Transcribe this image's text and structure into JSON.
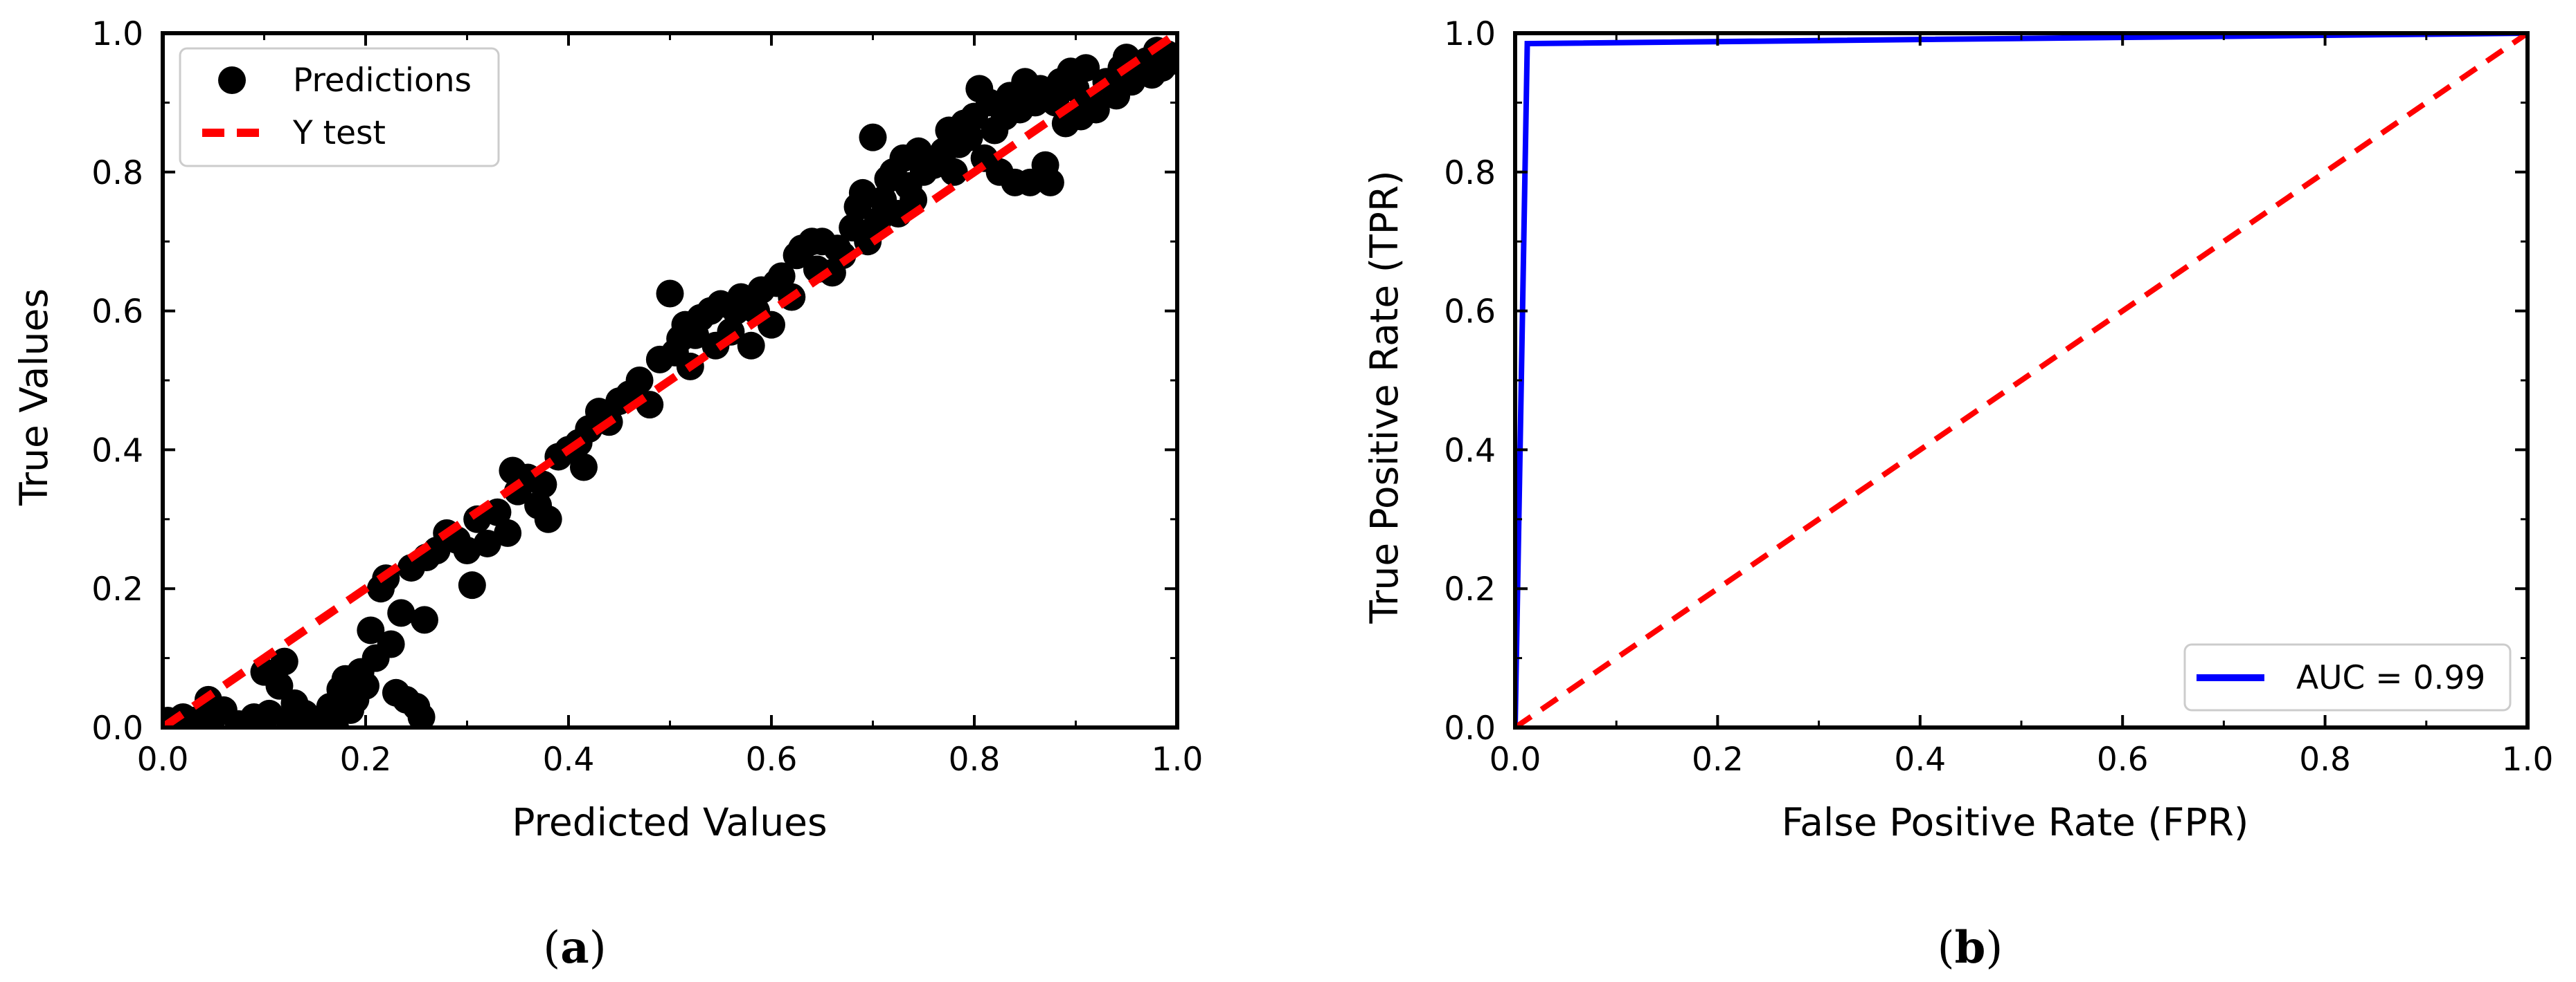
{
  "chart_data": [
    {
      "type": "scatter",
      "panel_label": "a",
      "xlabel": "Predicted Values",
      "ylabel": "True Values",
      "xlim": [
        0,
        1
      ],
      "ylim": [
        0,
        1
      ],
      "xticks": [
        "0.0",
        "0.2",
        "0.4",
        "0.6",
        "0.8",
        "1.0"
      ],
      "yticks": [
        "0.0",
        "0.2",
        "0.4",
        "0.6",
        "0.8",
        "1.0"
      ],
      "grid": false,
      "legend_position": "top-left",
      "colors": {
        "points": "#000000",
        "line": "#ff0000"
      },
      "series": [
        {
          "name": "Predictions",
          "kind": "scatter",
          "points": [
            [
              0.005,
              0.01
            ],
            [
              0.02,
              0.015
            ],
            [
              0.03,
              0.01
            ],
            [
              0.045,
              0.04
            ],
            [
              0.05,
              0.015
            ],
            [
              0.06,
              0.025
            ],
            [
              0.075,
              0.005
            ],
            [
              0.09,
              0.015
            ],
            [
              0.1,
              0.08
            ],
            [
              0.105,
              0.02
            ],
            [
              0.115,
              0.06
            ],
            [
              0.12,
              0.095
            ],
            [
              0.125,
              0.01
            ],
            [
              0.13,
              0.035
            ],
            [
              0.14,
              0.02
            ],
            [
              0.15,
              0.005
            ],
            [
              0.155,
              0.01
            ],
            [
              0.165,
              0.03
            ],
            [
              0.17,
              0.0
            ],
            [
              0.175,
              0.055
            ],
            [
              0.18,
              0.07
            ],
            [
              0.185,
              0.025
            ],
            [
              0.19,
              0.04
            ],
            [
              0.195,
              0.08
            ],
            [
              0.2,
              0.06
            ],
            [
              0.205,
              0.14
            ],
            [
              0.21,
              0.1
            ],
            [
              0.215,
              0.2
            ],
            [
              0.22,
              0.215
            ],
            [
              0.225,
              0.12
            ],
            [
              0.23,
              0.05
            ],
            [
              0.235,
              0.165
            ],
            [
              0.24,
              0.04
            ],
            [
              0.245,
              0.23
            ],
            [
              0.25,
              0.03
            ],
            [
              0.255,
              0.015
            ],
            [
              0.258,
              0.155
            ],
            [
              0.26,
              0.245
            ],
            [
              0.27,
              0.255
            ],
            [
              0.28,
              0.28
            ],
            [
              0.29,
              0.27
            ],
            [
              0.3,
              0.255
            ],
            [
              0.305,
              0.205
            ],
            [
              0.31,
              0.3
            ],
            [
              0.32,
              0.265
            ],
            [
              0.33,
              0.31
            ],
            [
              0.34,
              0.28
            ],
            [
              0.345,
              0.37
            ],
            [
              0.35,
              0.34
            ],
            [
              0.36,
              0.36
            ],
            [
              0.37,
              0.32
            ],
            [
              0.375,
              0.35
            ],
            [
              0.38,
              0.3
            ],
            [
              0.39,
              0.39
            ],
            [
              0.4,
              0.4
            ],
            [
              0.41,
              0.41
            ],
            [
              0.415,
              0.375
            ],
            [
              0.42,
              0.43
            ],
            [
              0.43,
              0.455
            ],
            [
              0.44,
              0.44
            ],
            [
              0.45,
              0.47
            ],
            [
              0.46,
              0.48
            ],
            [
              0.47,
              0.5
            ],
            [
              0.48,
              0.465
            ],
            [
              0.49,
              0.53
            ],
            [
              0.5,
              0.625
            ],
            [
              0.505,
              0.54
            ],
            [
              0.51,
              0.56
            ],
            [
              0.515,
              0.58
            ],
            [
              0.52,
              0.52
            ],
            [
              0.525,
              0.565
            ],
            [
              0.53,
              0.59
            ],
            [
              0.54,
              0.6
            ],
            [
              0.545,
              0.55
            ],
            [
              0.55,
              0.61
            ],
            [
              0.56,
              0.57
            ],
            [
              0.565,
              0.6
            ],
            [
              0.57,
              0.62
            ],
            [
              0.58,
              0.55
            ],
            [
              0.585,
              0.6
            ],
            [
              0.59,
              0.63
            ],
            [
              0.6,
              0.58
            ],
            [
              0.605,
              0.64
            ],
            [
              0.61,
              0.65
            ],
            [
              0.62,
              0.62
            ],
            [
              0.625,
              0.68
            ],
            [
              0.63,
              0.69
            ],
            [
              0.64,
              0.7
            ],
            [
              0.645,
              0.66
            ],
            [
              0.65,
              0.7
            ],
            [
              0.66,
              0.655
            ],
            [
              0.665,
              0.69
            ],
            [
              0.67,
              0.68
            ],
            [
              0.68,
              0.72
            ],
            [
              0.685,
              0.75
            ],
            [
              0.69,
              0.77
            ],
            [
              0.695,
              0.7
            ],
            [
              0.7,
              0.85
            ],
            [
              0.705,
              0.73
            ],
            [
              0.71,
              0.76
            ],
            [
              0.715,
              0.79
            ],
            [
              0.72,
              0.8
            ],
            [
              0.725,
              0.74
            ],
            [
              0.73,
              0.82
            ],
            [
              0.735,
              0.78
            ],
            [
              0.74,
              0.76
            ],
            [
              0.745,
              0.83
            ],
            [
              0.75,
              0.8
            ],
            [
              0.76,
              0.81
            ],
            [
              0.77,
              0.83
            ],
            [
              0.775,
              0.86
            ],
            [
              0.78,
              0.8
            ],
            [
              0.785,
              0.84
            ],
            [
              0.79,
              0.87
            ],
            [
              0.795,
              0.85
            ],
            [
              0.8,
              0.88
            ],
            [
              0.805,
              0.92
            ],
            [
              0.81,
              0.82
            ],
            [
              0.815,
              0.9
            ],
            [
              0.82,
              0.86
            ],
            [
              0.825,
              0.8
            ],
            [
              0.83,
              0.88
            ],
            [
              0.835,
              0.91
            ],
            [
              0.84,
              0.785
            ],
            [
              0.845,
              0.89
            ],
            [
              0.85,
              0.93
            ],
            [
              0.855,
              0.785
            ],
            [
              0.86,
              0.9
            ],
            [
              0.865,
              0.92
            ],
            [
              0.87,
              0.81
            ],
            [
              0.875,
              0.785
            ],
            [
              0.88,
              0.9
            ],
            [
              0.885,
              0.93
            ],
            [
              0.89,
              0.87
            ],
            [
              0.895,
              0.945
            ],
            [
              0.9,
              0.92
            ],
            [
              0.905,
              0.88
            ],
            [
              0.91,
              0.95
            ],
            [
              0.915,
              0.9
            ],
            [
              0.92,
              0.89
            ],
            [
              0.93,
              0.93
            ],
            [
              0.94,
              0.91
            ],
            [
              0.945,
              0.95
            ],
            [
              0.95,
              0.965
            ],
            [
              0.955,
              0.93
            ],
            [
              0.96,
              0.955
            ],
            [
              0.97,
              0.96
            ],
            [
              0.975,
              0.94
            ],
            [
              0.98,
              0.975
            ],
            [
              0.99,
              0.97
            ],
            [
              0.995,
              0.96
            ],
            [
              0.985,
              0.95
            ]
          ]
        },
        {
          "name": "Y test",
          "kind": "line",
          "style": "dashed",
          "x": [
            0,
            1
          ],
          "y": [
            0,
            1
          ]
        }
      ]
    },
    {
      "type": "line",
      "panel_label": "b",
      "xlabel": "False Positive Rate (FPR)",
      "ylabel": "True Positive Rate (TPR)",
      "xlim": [
        0,
        1
      ],
      "ylim": [
        0,
        1
      ],
      "xticks": [
        "0.0",
        "0.2",
        "0.4",
        "0.6",
        "0.8",
        "1.0"
      ],
      "yticks": [
        "0.0",
        "0.2",
        "0.4",
        "0.6",
        "0.8",
        "1.0"
      ],
      "grid": false,
      "legend_position": "bottom-right",
      "colors": {
        "roc": "#0000ff",
        "diagonal": "#ff0000"
      },
      "series": [
        {
          "name": "AUC = 0.99",
          "kind": "line",
          "x": [
            0,
            0.012,
            1
          ],
          "y": [
            0,
            0.985,
            1
          ]
        },
        {
          "name": "",
          "kind": "line",
          "style": "dashed",
          "x": [
            0,
            1
          ],
          "y": [
            0,
            1
          ]
        }
      ]
    }
  ]
}
